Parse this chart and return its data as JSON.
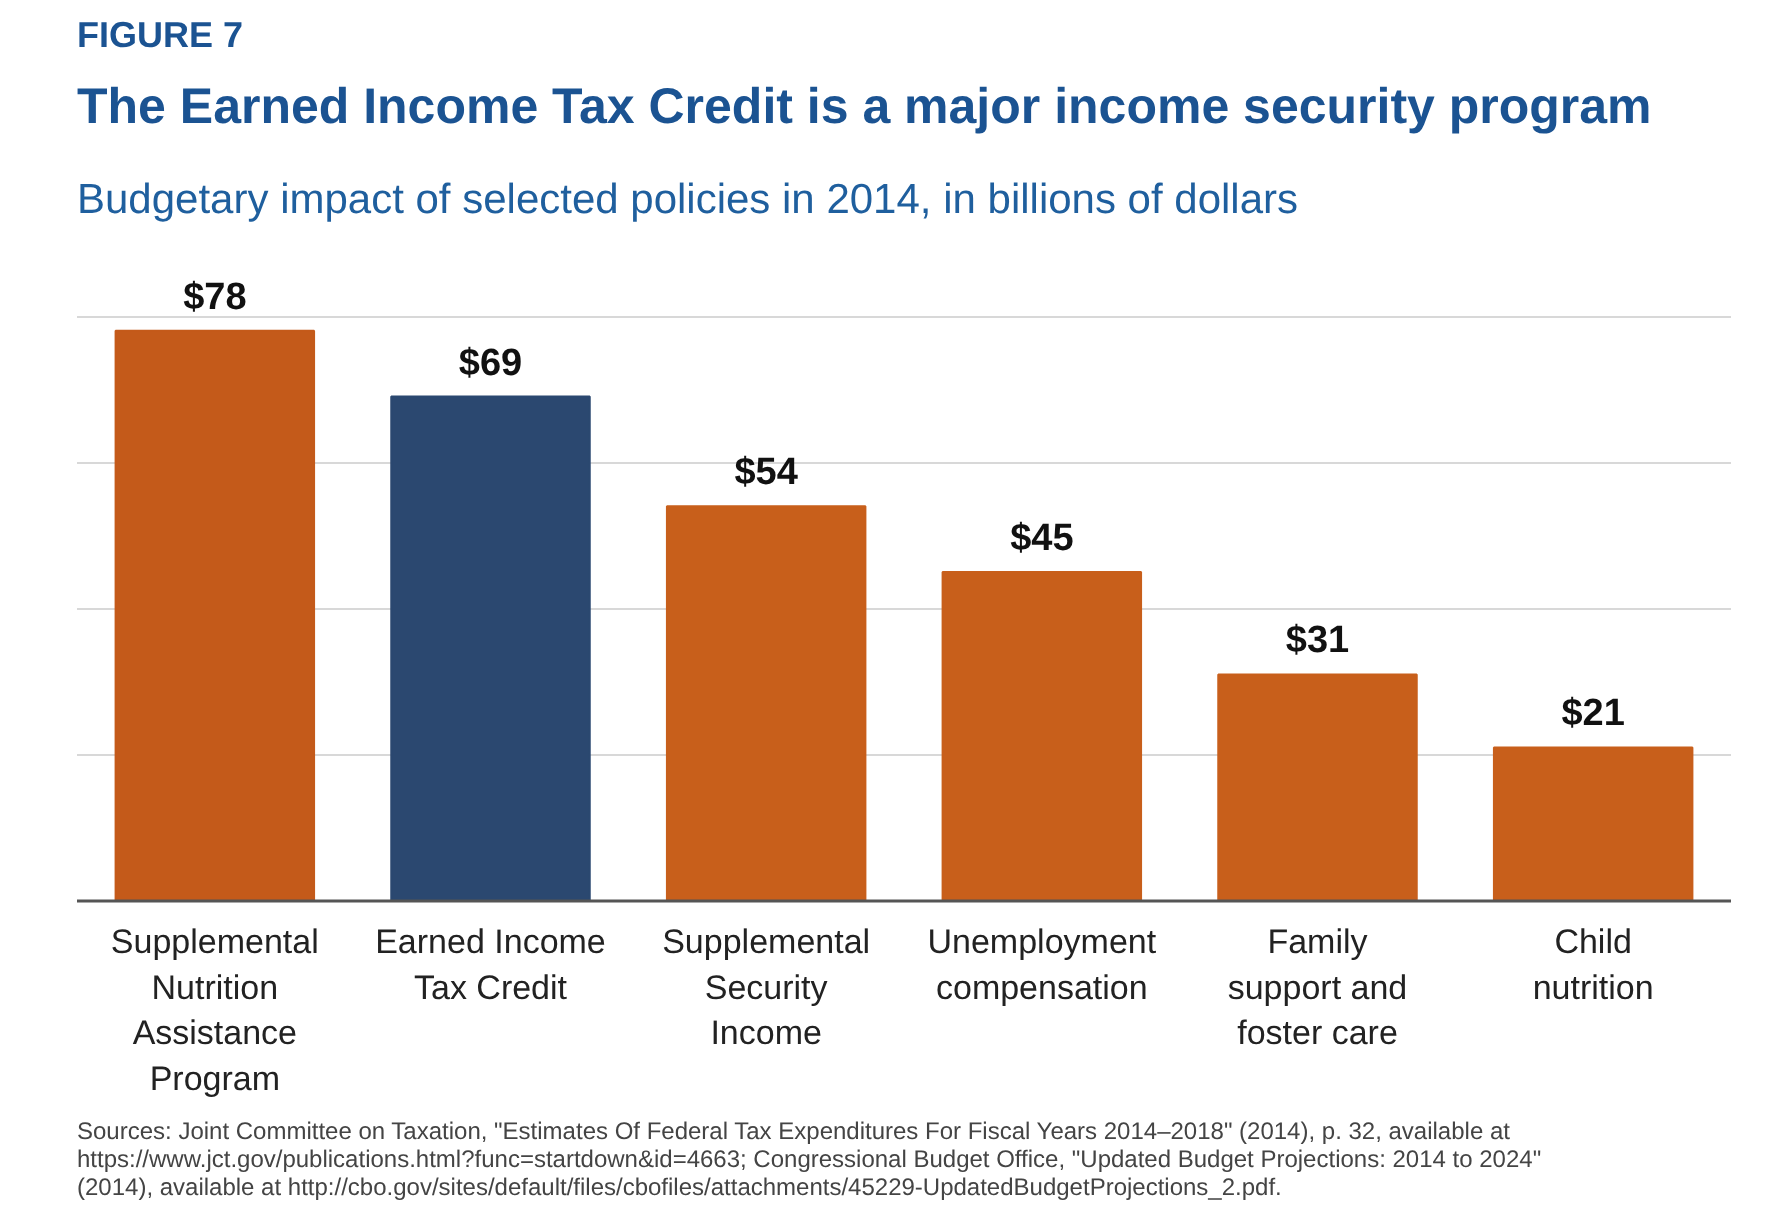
{
  "chart_data": {
    "type": "bar",
    "title": "The Earned Income Tax Credit is a major income security program",
    "subtitle": "Budgetary impact of selected policies in 2014, in billions of dollars",
    "categories": [
      "Supplemental Nutrition Assistance Program",
      "Earned Income Tax Credit",
      "Supplemental Security Income",
      "Unemployment compensation",
      "Family support and foster care",
      "Child nutrition"
    ],
    "values": [
      78,
      69,
      54,
      45,
      31,
      21
    ],
    "colors": [
      "#c45a1a",
      "#2b4870",
      "#c85f1b",
      "#c85f1b",
      "#c85f1b",
      "#c85f1b"
    ],
    "value_labels": [
      "$78",
      "$69",
      "$54",
      "$45",
      "$31",
      "$21"
    ],
    "tick_labels": "x",
    "grid": "y",
    "annotations": [
      "FIGURE 7",
      "Sources: Joint Committee on Taxation, \"Estimates Of Federal Tax Expenditures For Fiscal Years 2014–2018\" (2014), p. 32, available at https://www.jct.gov/publications.html?func=startdown&id=4663; Congressional Budget Office, \"Updated Budget Projections: 2014 to 2024\" (2014), available at http://cbo.gov/sites/default/files/cbofiles/attachments/45229-UpdatedBudgetProjections_2.pdf."
    ]
  }
}
